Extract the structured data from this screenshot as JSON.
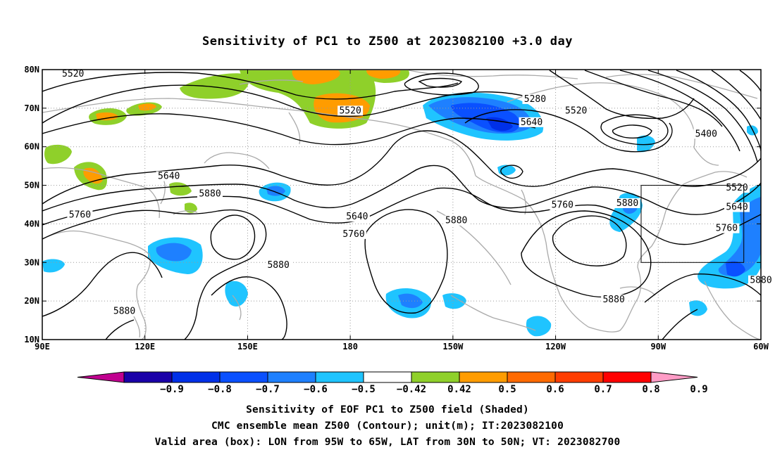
{
  "title": "Sensitivity of PC1 to Z500 at 2023082100 +3.0 day",
  "map": {
    "lon_range": [
      90,
      300
    ],
    "lat_range": [
      10,
      80
    ],
    "lon_ticks": [
      "90E",
      "120E",
      "150E",
      "180",
      "150W",
      "120W",
      "90W",
      "60W"
    ],
    "lat_ticks": [
      "10N",
      "20N",
      "30N",
      "40N",
      "50N",
      "60N",
      "70N",
      "80N"
    ],
    "grid": "dotted",
    "valid_box": {
      "lon_west": -95,
      "lon_east": -65,
      "lat_south": 30,
      "lat_north": 50
    }
  },
  "contours": {
    "labels": [
      {
        "text": "5520",
        "lon": 99,
        "lat": 78.5
      },
      {
        "text": "5280",
        "lon": 234,
        "lat": 72
      },
      {
        "text": "5520",
        "lon": 180,
        "lat": 69
      },
      {
        "text": "5520",
        "lon": 246,
        "lat": 69
      },
      {
        "text": "5640",
        "lon": 233,
        "lat": 66
      },
      {
        "text": "5400",
        "lon": 284,
        "lat": 63
      },
      {
        "text": "5640",
        "lon": 127,
        "lat": 52
      },
      {
        "text": "5880",
        "lon": 139,
        "lat": 47.5
      },
      {
        "text": "5760",
        "lon": 101,
        "lat": 42
      },
      {
        "text": "5640",
        "lon": 182,
        "lat": 41.5
      },
      {
        "text": "5760",
        "lon": 181,
        "lat": 37
      },
      {
        "text": "5880",
        "lon": 211,
        "lat": 40.5
      },
      {
        "text": "5760",
        "lon": 242,
        "lat": 44.5
      },
      {
        "text": "5880",
        "lon": 261,
        "lat": 45
      },
      {
        "text": "5520",
        "lon": 293,
        "lat": 49
      },
      {
        "text": "5640",
        "lon": 293,
        "lat": 44
      },
      {
        "text": "5760",
        "lon": 290,
        "lat": 38.5
      },
      {
        "text": "5880",
        "lon": 159,
        "lat": 29
      },
      {
        "text": "5880",
        "lon": 114,
        "lat": 17
      },
      {
        "text": "5880",
        "lon": 257,
        "lat": 20
      },
      {
        "text": "5880",
        "lon": 300,
        "lat": 25
      }
    ]
  },
  "colorbar": {
    "colors": [
      "#c0008f",
      "#1a00a8",
      "#0030e8",
      "#0a50ff",
      "#1e80ff",
      "#1fc4ff",
      "#ffffff",
      "#8fd02a",
      "#ff9c00",
      "#ff6a00",
      "#ff3d00",
      "#ff0000",
      "#ff9cc6"
    ],
    "labels": [
      "−0.9",
      "−0.8",
      "−0.7",
      "−0.6",
      "−0.5",
      "−0.42",
      "0.42",
      "0.5",
      "0.6",
      "0.7",
      "0.8",
      "0.9"
    ]
  },
  "footer": {
    "line1": "Sensitivity of EOF PC1 to Z500 field (Shaded)",
    "line2": "CMC ensemble mean Z500 (Contour); unit(m); IT:2023082100",
    "line3": "Valid area (box): LON from 95W to 65W, LAT from 30N to 50N; VT: 2023082700"
  }
}
